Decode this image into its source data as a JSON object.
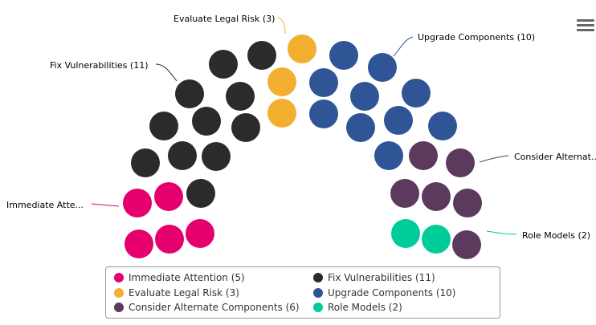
{
  "chart_data": {
    "type": "item",
    "layout": "parliament-semicircle",
    "total_seats": 37,
    "series": [
      {
        "name": "Immediate Attention",
        "value": 5,
        "color": "#e6006e",
        "label": "Immediate Atte..."
      },
      {
        "name": "Fix Vulnerabilities",
        "value": 11,
        "color": "#2b2b2b",
        "label": "Fix Vulnerabilities (11)"
      },
      {
        "name": "Evaluate Legal Risk",
        "value": 3,
        "color": "#f2af30",
        "label": "Evaluate Legal Risk (3)"
      },
      {
        "name": "Upgrade Components",
        "value": 10,
        "color": "#2f5597",
        "label": "Upgrade Components (10)"
      },
      {
        "name": "Consider Alternate Components",
        "value": 6,
        "color": "#5c3a5e",
        "label": "Consider Alternat.."
      },
      {
        "name": "Role Models",
        "value": 2,
        "color": "#00cc99",
        "label": "Role Models (2)"
      }
    ],
    "legend": {
      "placement": "bottom",
      "items": [
        {
          "text": "Immediate Attention (5)",
          "color": "#e6006e"
        },
        {
          "text": "Fix Vulnerabilities (11)",
          "color": "#2b2b2b"
        },
        {
          "text": "Evaluate Legal Risk (3)",
          "color": "#f2af30"
        },
        {
          "text": "Upgrade Components (10)",
          "color": "#2f5597"
        },
        {
          "text": "Consider Alternate Components (6)",
          "color": "#5c3a5e"
        },
        {
          "text": "Role Models (2)",
          "color": "#00cc99"
        }
      ]
    }
  }
}
